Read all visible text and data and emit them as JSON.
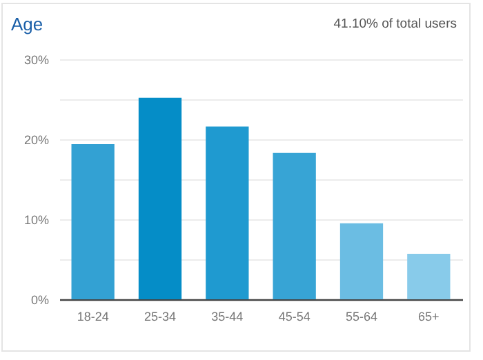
{
  "chart_data": {
    "type": "bar",
    "title": "Age",
    "annotations": [
      "41.10% of total users"
    ],
    "categories": [
      "18-24",
      "25-34",
      "35-44",
      "45-54",
      "55-64",
      "65+"
    ],
    "values": [
      19.4,
      25.2,
      21.6,
      18.3,
      9.5,
      5.7
    ],
    "colors": [
      "#33a1d3",
      "#058dc7",
      "#1f9ad0",
      "#37a4d5",
      "#6bbde3",
      "#88cbea"
    ],
    "ylim": [
      0,
      30
    ],
    "yticks": [
      {
        "value": 0,
        "label": "0%"
      },
      {
        "value": 5,
        "label": null
      },
      {
        "value": 10,
        "label": "10%"
      },
      {
        "value": 15,
        "label": null
      },
      {
        "value": 20,
        "label": "20%"
      },
      {
        "value": 25,
        "label": null
      },
      {
        "value": 30,
        "label": "30%"
      }
    ],
    "grid": "y"
  }
}
